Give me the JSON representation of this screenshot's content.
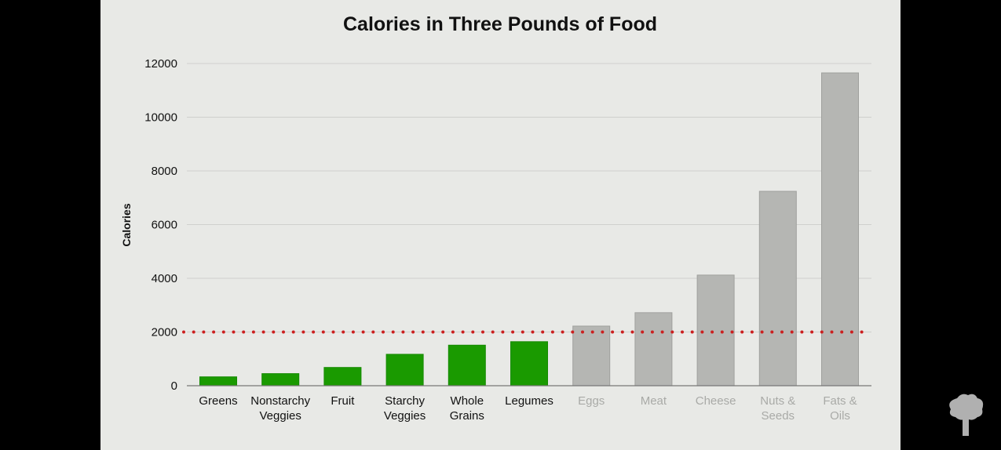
{
  "chart_data": {
    "type": "bar",
    "title": "Calories in Three Pounds of Food",
    "xlabel": "",
    "ylabel": "Calories",
    "ylim": [
      0,
      12000
    ],
    "yticks": [
      0,
      2000,
      4000,
      6000,
      8000,
      10000,
      12000
    ],
    "grid": true,
    "categories": [
      "Greens",
      "Nonstarchy Veggies",
      "Fruit",
      "Starchy Veggies",
      "Whole Grains",
      "Legumes",
      "Eggs",
      "Meat",
      "Cheese",
      "Nuts & Seeds",
      "Fats & Oils"
    ],
    "category_lines": [
      [
        "Greens"
      ],
      [
        "Nonstarchy",
        "Veggies"
      ],
      [
        "Fruit"
      ],
      [
        "Starchy",
        "Veggies"
      ],
      [
        "Whole",
        "Grains"
      ],
      [
        "Legumes"
      ],
      [
        "Eggs"
      ],
      [
        "Meat"
      ],
      [
        "Cheese"
      ],
      [
        "Nuts &",
        "Seeds"
      ],
      [
        "Fats &",
        "Oils"
      ]
    ],
    "values": [
      330,
      450,
      680,
      1170,
      1510,
      1640,
      2220,
      2720,
      4120,
      7240,
      11650
    ],
    "bar_groups": [
      "plant",
      "plant",
      "plant",
      "plant",
      "plant",
      "plant",
      "animal_or_dense",
      "animal_or_dense",
      "animal_or_dense",
      "animal_or_dense",
      "animal_or_dense"
    ],
    "reference_line": {
      "value": 2000,
      "style": "dotted",
      "color": "#cc1f1f"
    },
    "colors": {
      "plant": "#1a9a00",
      "animal_or_dense": "#b5b6b3",
      "plant_label": "#111111",
      "animal_label": "#a9aaa7",
      "background": "#e8e9e6",
      "grid": "#cfd0cd"
    }
  },
  "logo": {
    "icon": "broccoli-tree-icon",
    "color": "#b0b0b0"
  }
}
